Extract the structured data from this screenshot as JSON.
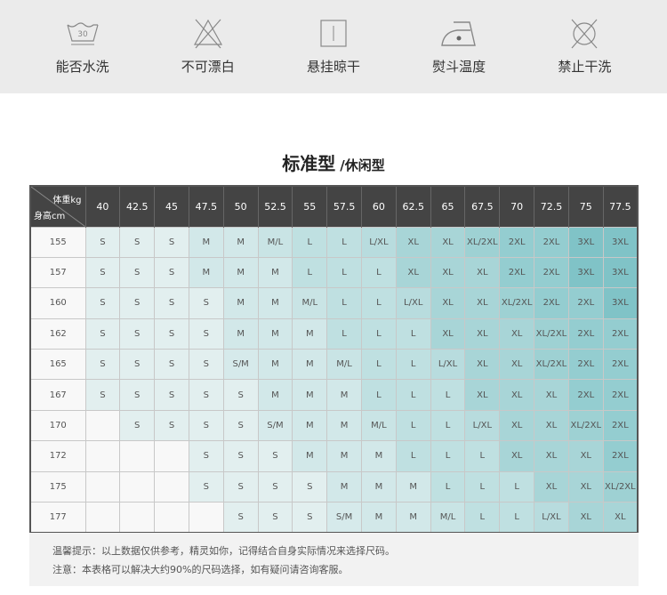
{
  "care_icons": [
    {
      "icon": "wash-30-icon",
      "label": "能否水洗",
      "temp": "30"
    },
    {
      "icon": "no-bleach-icon",
      "label": "不可漂白"
    },
    {
      "icon": "hang-dry-icon",
      "label": "悬挂晾干"
    },
    {
      "icon": "iron-icon",
      "label": "熨斗温度"
    },
    {
      "icon": "no-dry-clean-icon",
      "label": "禁止干洗"
    }
  ],
  "title": {
    "main": "标准型",
    "sub": "/休闲型"
  },
  "table": {
    "weight_label": "体重kg",
    "height_label": "身高cm",
    "weights": [
      "40",
      "42.5",
      "45",
      "47.5",
      "50",
      "52.5",
      "55",
      "57.5",
      "60",
      "62.5",
      "65",
      "67.5",
      "70",
      "72.5",
      "75",
      "77.5"
    ],
    "rows": [
      {
        "height": "155",
        "sizes": [
          "S",
          "S",
          "S",
          "M",
          "M",
          "M/L",
          "L",
          "L",
          "L/XL",
          "XL",
          "XL",
          "XL/2XL",
          "2XL",
          "2XL",
          "3XL",
          "3XL"
        ]
      },
      {
        "height": "157",
        "sizes": [
          "S",
          "S",
          "S",
          "M",
          "M",
          "M",
          "L",
          "L",
          "L",
          "XL",
          "XL",
          "XL",
          "2XL",
          "2XL",
          "3XL",
          "3XL"
        ]
      },
      {
        "height": "160",
        "sizes": [
          "S",
          "S",
          "S",
          "S",
          "M",
          "M",
          "M/L",
          "L",
          "L",
          "L/XL",
          "XL",
          "XL",
          "XL/2XL",
          "2XL",
          "2XL",
          "3XL"
        ]
      },
      {
        "height": "162",
        "sizes": [
          "S",
          "S",
          "S",
          "S",
          "M",
          "M",
          "M",
          "L",
          "L",
          "L",
          "XL",
          "XL",
          "XL",
          "XL/2XL",
          "2XL",
          "2XL"
        ]
      },
      {
        "height": "165",
        "sizes": [
          "S",
          "S",
          "S",
          "S",
          "S/M",
          "M",
          "M",
          "M/L",
          "L",
          "L",
          "L/XL",
          "XL",
          "XL",
          "XL/2XL",
          "2XL",
          "2XL"
        ]
      },
      {
        "height": "167",
        "sizes": [
          "S",
          "S",
          "S",
          "S",
          "S",
          "M",
          "M",
          "M",
          "L",
          "L",
          "L",
          "XL",
          "XL",
          "XL",
          "2XL",
          "2XL"
        ]
      },
      {
        "height": "170",
        "sizes": [
          "",
          "S",
          "S",
          "S",
          "S",
          "S/M",
          "M",
          "M",
          "M/L",
          "L",
          "L",
          "L/XL",
          "XL",
          "XL",
          "XL/2XL",
          "2XL"
        ]
      },
      {
        "height": "172",
        "sizes": [
          "",
          "",
          "",
          "S",
          "S",
          "S",
          "M",
          "M",
          "M",
          "L",
          "L",
          "L",
          "XL",
          "XL",
          "XL",
          "2XL"
        ]
      },
      {
        "height": "175",
        "sizes": [
          "",
          "",
          "",
          "S",
          "S",
          "S",
          "S",
          "M",
          "M",
          "M",
          "L",
          "L",
          "L",
          "XL",
          "XL",
          "XL/2XL"
        ]
      },
      {
        "height": "177",
        "sizes": [
          "",
          "",
          "",
          "",
          "S",
          "S",
          "S",
          "S/M",
          "M",
          "M",
          "M/L",
          "L",
          "L",
          "L/XL",
          "XL",
          "XL"
        ]
      }
    ]
  },
  "size_colors": {
    "": "#f8f8f8",
    "S": "#e2efef",
    "S/M": "#d6eaeb",
    "M": "#d2e8e9",
    "M/L": "#c9e4e5",
    "L": "#bfe0e1",
    "L/XL": "#b8dcde",
    "XL": "#a8d5d7",
    "XL/2XL": "#9ed1d3",
    "2XL": "#94cdd0",
    "3XL": "#80c3c7"
  },
  "notes": [
    "温馨提示：以上数据仅供参考，精灵如你，记得结合自身实际情况来选择尺码。",
    "注意：本表格可以解决大约90%的尺码选择，如有疑问请咨询客服。"
  ]
}
